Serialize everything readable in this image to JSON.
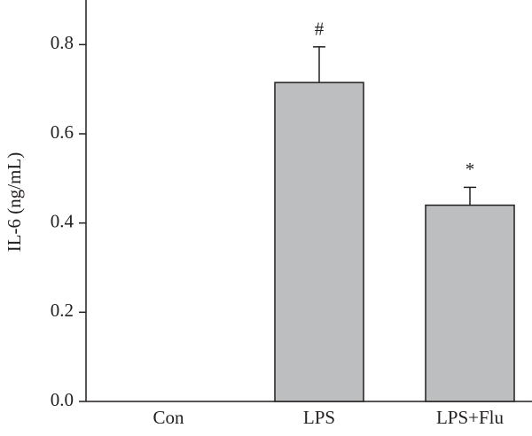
{
  "chart_data": {
    "type": "bar",
    "y_label": "IL-6 (ng/mL)",
    "categories": [
      "Con",
      "LPS",
      "LPS+Flu"
    ],
    "values": [
      0,
      0.715,
      0.44
    ],
    "errors": [
      null,
      0.08,
      0.04
    ],
    "annotations": [
      null,
      "#",
      "*"
    ],
    "color": "#bcbec0",
    "ylim": [
      0,
      0.9
    ],
    "yticks": [
      {
        "value": 0,
        "label": "0.0"
      },
      0.2,
      0.4,
      0.6,
      0.8
    ]
  }
}
